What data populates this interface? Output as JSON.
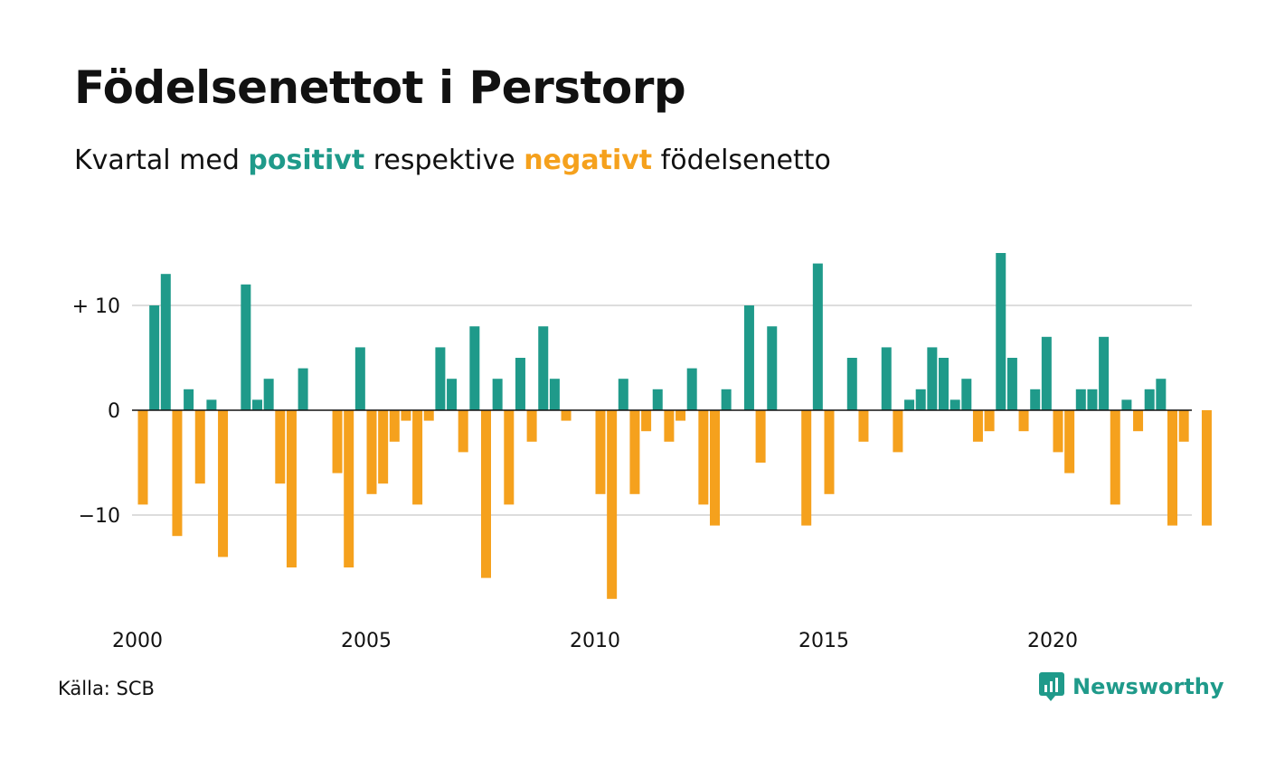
{
  "title": "Födelsenettot i Perstorp",
  "subtitle": {
    "prefix": "Kvartal med ",
    "positive_word": "positivt",
    "middle": " respektive ",
    "negative_word": "negativt",
    "suffix": " födelsenetto"
  },
  "source": "Källa: SCB",
  "brand": {
    "name": "Newsworthy",
    "icon": "newsworthy-logo-icon"
  },
  "colors": {
    "positive": "#1f9a8a",
    "negative": "#f5a11d",
    "grid": "#dddddd",
    "zero_line": "#111111"
  },
  "chart_data": {
    "type": "bar",
    "title": "Födelsenettot i Perstorp",
    "xlabel": "",
    "ylabel": "",
    "x_start": 2000.0,
    "x_step": 0.25,
    "values": [
      -9,
      10,
      13,
      -12,
      2,
      -7,
      1,
      -14,
      0,
      12,
      1,
      3,
      -7,
      -15,
      4,
      0,
      0,
      -6,
      -15,
      6,
      -8,
      -7,
      -3,
      -1,
      -9,
      -1,
      6,
      3,
      -4,
      8,
      -16,
      3,
      -9,
      5,
      -3,
      8,
      3,
      -1,
      0,
      0,
      -8,
      -18,
      3,
      -8,
      -2,
      2,
      -3,
      -1,
      4,
      -9,
      -11,
      2,
      0,
      10,
      -5,
      8,
      0,
      0,
      -11,
      14,
      -8,
      0,
      5,
      -3,
      0,
      6,
      -4,
      1,
      2,
      6,
      5,
      1,
      3,
      -3,
      -2,
      15,
      5,
      -2,
      2,
      7,
      -4,
      -6,
      2,
      2,
      7,
      -9,
      1,
      -2,
      2,
      3,
      -11,
      -3,
      0,
      -11
    ],
    "ylim": [
      -20,
      16
    ],
    "yticks": [
      {
        "value": 10,
        "label": "+ 10"
      },
      {
        "value": 0,
        "label": "0"
      },
      {
        "value": -10,
        "label": "−10"
      }
    ],
    "xticks": [
      {
        "value": 2000,
        "label": "2000"
      },
      {
        "value": 2005,
        "label": "2005"
      },
      {
        "value": 2010,
        "label": "2010"
      },
      {
        "value": 2015,
        "label": "2015"
      },
      {
        "value": 2020,
        "label": "2020"
      }
    ],
    "grid": true,
    "legend": "none"
  }
}
